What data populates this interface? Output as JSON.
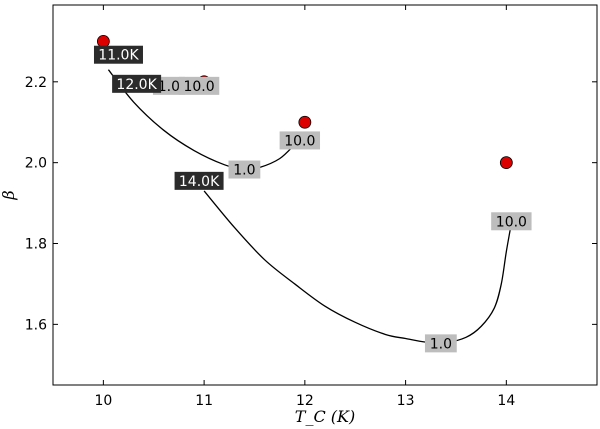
{
  "chart_data": {
    "type": "scatter",
    "xlabel": "T_C (K)",
    "ylabel": "β",
    "xlim": [
      9.5,
      14.9
    ],
    "ylim": [
      1.45,
      2.39
    ],
    "xticks": [
      "10",
      "11",
      "12",
      "13",
      "14"
    ],
    "yticks": [
      "1.6",
      "1.8",
      "2.0",
      "2.2"
    ],
    "grid": false,
    "points": [
      {
        "x": 10,
        "y": 2.3,
        "color": "#dd0000"
      },
      {
        "x": 11,
        "y": 2.2,
        "color": "#dd0000"
      },
      {
        "x": 12,
        "y": 2.1,
        "color": "#dd0000"
      },
      {
        "x": 14,
        "y": 2.0,
        "color": "#dd0000"
      }
    ],
    "curves": [
      {
        "name": "11.0K",
        "points": [
          [
            10.0,
            2.3
          ]
        ],
        "start_label": "11.0K",
        "annotations": []
      },
      {
        "name": "12.0K",
        "points": [
          [
            10.05,
            2.23
          ],
          [
            10.3,
            2.15
          ],
          [
            10.6,
            2.08
          ],
          [
            10.9,
            2.03
          ],
          [
            11.2,
            1.995
          ],
          [
            11.4,
            1.983
          ],
          [
            11.55,
            1.988
          ],
          [
            11.75,
            2.01
          ],
          [
            11.9,
            2.045
          ]
        ],
        "start_label": "12.0K",
        "annotations": [
          {
            "text": "1.0",
            "x": 11.4,
            "y": 1.983
          },
          {
            "text": "10.0",
            "x": 11.95,
            "y": 2.055
          }
        ]
      },
      {
        "name": "14.0K",
        "points": [
          [
            11.0,
            1.93
          ],
          [
            11.3,
            1.84
          ],
          [
            11.6,
            1.76
          ],
          [
            11.9,
            1.7
          ],
          [
            12.2,
            1.645
          ],
          [
            12.5,
            1.605
          ],
          [
            12.8,
            1.575
          ],
          [
            13.0,
            1.565
          ],
          [
            13.2,
            1.556
          ],
          [
            13.4,
            1.555
          ],
          [
            13.6,
            1.568
          ],
          [
            13.75,
            1.595
          ],
          [
            13.88,
            1.64
          ],
          [
            13.95,
            1.7
          ],
          [
            14.0,
            1.78
          ],
          [
            14.05,
            1.85
          ]
        ],
        "start_label": "14.0K",
        "annotations": [
          {
            "text": "1.0",
            "x": 13.35,
            "y": 1.553
          },
          {
            "text": "10.0",
            "x": 14.05,
            "y": 1.855
          }
        ]
      }
    ],
    "extra_labels": [
      {
        "text": "1.0",
        "x": 10.65,
        "y": 2.19
      },
      {
        "text": "10.0",
        "x": 10.95,
        "y": 2.19
      }
    ],
    "colors": {
      "dark_label_bg": "#2b2b2b",
      "light_label_bg": "#bdbdbd",
      "curve": "#000000",
      "marker_edge": "#000000"
    }
  }
}
